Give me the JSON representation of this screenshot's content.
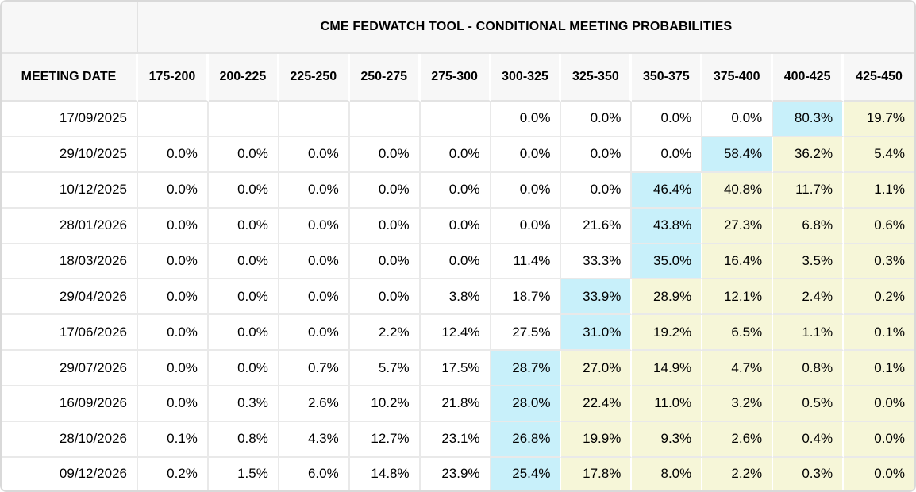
{
  "chart_data": {
    "type": "table",
    "title": "CME FEDWATCH TOOL - CONDITIONAL MEETING PROBABILITIES",
    "row_header_label": "MEETING DATE",
    "columns": [
      "175-200",
      "200-225",
      "225-250",
      "250-275",
      "275-300",
      "300-325",
      "325-350",
      "350-375",
      "375-400",
      "400-425",
      "425-450"
    ],
    "unit": "%",
    "rows": [
      {
        "date": "17/09/2025",
        "values": [
          null,
          null,
          null,
          null,
          null,
          0.0,
          0.0,
          0.0,
          0.0,
          80.3,
          19.7
        ]
      },
      {
        "date": "29/10/2025",
        "values": [
          0.0,
          0.0,
          0.0,
          0.0,
          0.0,
          0.0,
          0.0,
          0.0,
          58.4,
          36.2,
          5.4
        ]
      },
      {
        "date": "10/12/2025",
        "values": [
          0.0,
          0.0,
          0.0,
          0.0,
          0.0,
          0.0,
          0.0,
          46.4,
          40.8,
          11.7,
          1.1
        ]
      },
      {
        "date": "28/01/2026",
        "values": [
          0.0,
          0.0,
          0.0,
          0.0,
          0.0,
          0.0,
          21.6,
          43.8,
          27.3,
          6.8,
          0.6
        ]
      },
      {
        "date": "18/03/2026",
        "values": [
          0.0,
          0.0,
          0.0,
          0.0,
          0.0,
          11.4,
          33.3,
          35.0,
          16.4,
          3.5,
          0.3
        ]
      },
      {
        "date": "29/04/2026",
        "values": [
          0.0,
          0.0,
          0.0,
          0.0,
          3.8,
          18.7,
          33.9,
          28.9,
          12.1,
          2.4,
          0.2
        ]
      },
      {
        "date": "17/06/2026",
        "values": [
          0.0,
          0.0,
          0.0,
          2.2,
          12.4,
          27.5,
          31.0,
          19.2,
          6.5,
          1.1,
          0.1
        ]
      },
      {
        "date": "29/07/2026",
        "values": [
          0.0,
          0.0,
          0.7,
          5.7,
          17.5,
          28.7,
          27.0,
          14.9,
          4.7,
          0.8,
          0.1
        ]
      },
      {
        "date": "16/09/2026",
        "values": [
          0.0,
          0.3,
          2.6,
          10.2,
          21.8,
          28.0,
          22.4,
          11.0,
          3.2,
          0.5,
          0.0
        ]
      },
      {
        "date": "28/10/2026",
        "values": [
          0.1,
          0.8,
          4.3,
          12.7,
          23.1,
          26.8,
          19.9,
          9.3,
          2.6,
          0.4,
          0.0
        ]
      },
      {
        "date": "09/12/2026",
        "values": [
          0.2,
          1.5,
          6.0,
          14.8,
          23.9,
          25.4,
          17.8,
          8.0,
          2.2,
          0.3,
          0.0
        ]
      }
    ]
  },
  "table": {
    "value_format": "one-decimal-percent",
    "highlight_cyan_index": [
      9,
      8,
      7,
      7,
      7,
      6,
      6,
      5,
      5,
      5,
      5
    ],
    "highlight_rule_cyan": "highest probability in row",
    "highlight_rule_yellow": "columns to the right of highest probability"
  },
  "colors": {
    "highlight_cyan": "#c8f0fa",
    "highlight_yellow": "#f6f6d8",
    "header_bg": "#f7f7f7",
    "grid_line": "#e9e9e9",
    "frame_border": "#d9d9d9",
    "text": "#000000"
  }
}
